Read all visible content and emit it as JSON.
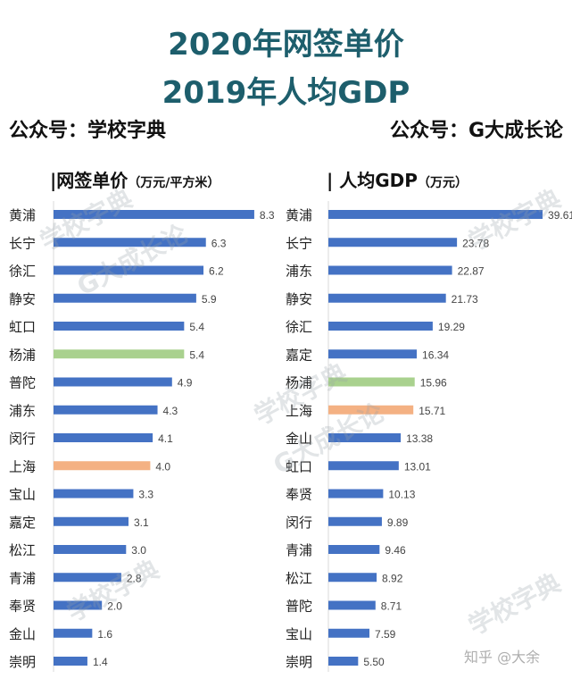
{
  "header": {
    "title1": "2020年网签单价",
    "title2": "2019年人均GDP",
    "left_source": "公众号：学校字典",
    "right_source": "公众号：G大成长论"
  },
  "watermarks": {
    "w1": "学校字典",
    "w2": "G大成长论",
    "zhihu": "知乎 @大余"
  },
  "colors": {
    "default": "#4472C4",
    "yangpu": "#A9D18E",
    "shanghai": "#F4B183"
  },
  "chart_data": [
    {
      "type": "bar",
      "orientation": "horizontal",
      "title": "|网签单价",
      "unit": "（万元/平方米）",
      "categories": [
        "黄浦",
        "长宁",
        "徐汇",
        "静安",
        "虹口",
        "杨浦",
        "普陀",
        "浦东",
        "闵行",
        "上海",
        "宝山",
        "嘉定",
        "松江",
        "青浦",
        "奉贤",
        "金山",
        "崇明"
      ],
      "values": [
        8.3,
        6.3,
        6.2,
        5.9,
        5.4,
        5.4,
        4.9,
        4.3,
        4.1,
        4.0,
        3.3,
        3.1,
        3.0,
        2.8,
        2.0,
        1.6,
        1.4
      ],
      "labels": [
        "8.3",
        "6.3",
        "6.2",
        "5.9",
        "5.4",
        "5.4",
        "4.9",
        "4.3",
        "4.1",
        "4.0",
        "3.3",
        "3.1",
        "3.0",
        "2.8",
        "2.0",
        "1.6",
        "1.4"
      ]
    },
    {
      "type": "bar",
      "orientation": "horizontal",
      "title": "| 人均GDP",
      "unit": "（万元）",
      "categories": [
        "黄浦",
        "长宁",
        "浦东",
        "静安",
        "徐汇",
        "嘉定",
        "杨浦",
        "上海",
        "金山",
        "虹口",
        "奉贤",
        "闵行",
        "青浦",
        "松江",
        "普陀",
        "宝山",
        "崇明"
      ],
      "values": [
        39.61,
        23.78,
        22.87,
        21.73,
        19.29,
        16.34,
        15.96,
        15.71,
        13.38,
        13.01,
        10.13,
        9.89,
        9.46,
        8.92,
        8.71,
        7.59,
        5.5
      ],
      "labels": [
        "39.61",
        "23.78",
        "22.87",
        "21.73",
        "19.29",
        "16.34",
        "15.96",
        "15.71",
        "13.38",
        "13.01",
        "10.13",
        "9.89",
        "9.46",
        "8.92",
        "8.71",
        "7.59",
        "5.50"
      ]
    }
  ]
}
